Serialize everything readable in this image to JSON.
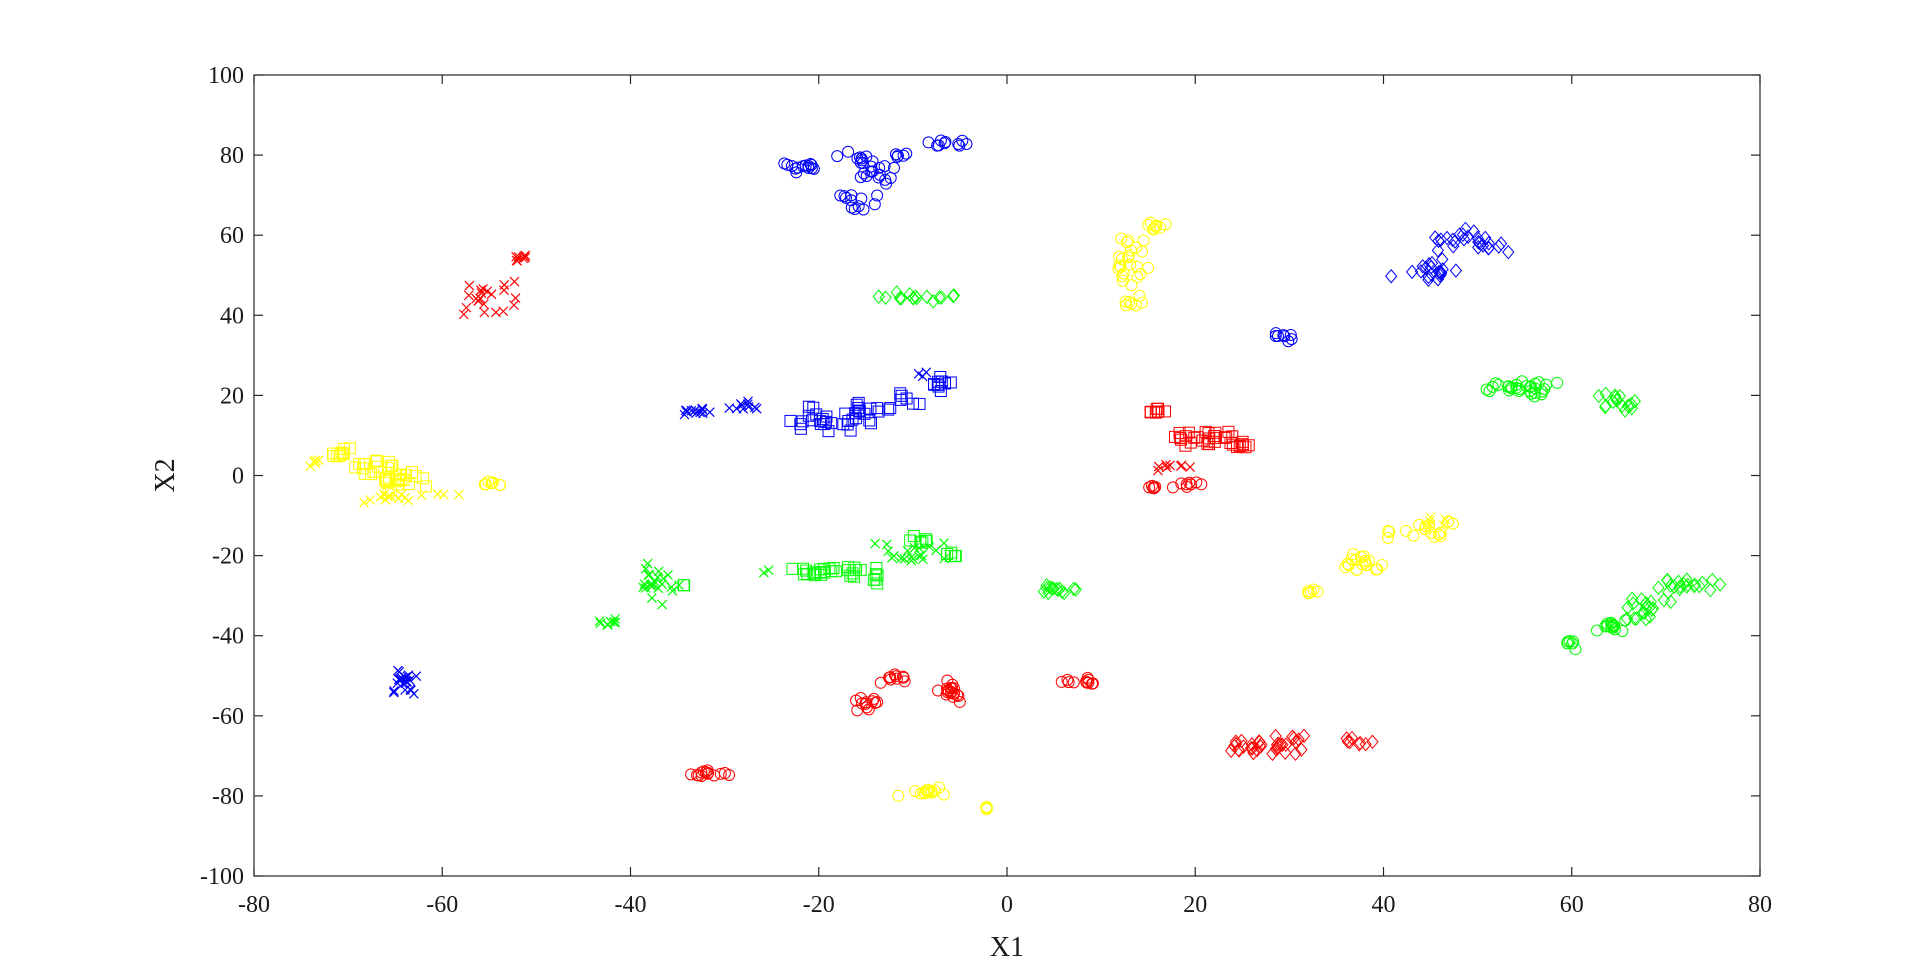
{
  "chart_data": {
    "type": "scatter",
    "title": "",
    "xlabel": "X1",
    "ylabel": "X2",
    "xlim": [
      -80,
      80
    ],
    "ylim": [
      -100,
      100
    ],
    "xticks": [
      -80,
      -60,
      -40,
      -20,
      0,
      20,
      40,
      60,
      80
    ],
    "yticks": [
      -100,
      -80,
      -60,
      -40,
      -20,
      0,
      20,
      40,
      60,
      80,
      100
    ],
    "grid": false,
    "legend": "none",
    "colors": {
      "blue": "#0000ff",
      "red": "#ff0000",
      "green": "#00ff00",
      "yellow": "#ffff00"
    },
    "clusters": [
      {
        "color": "blue",
        "marker": "o",
        "cx": -22,
        "cy": 77,
        "sx": 1.5,
        "sy": 1.0,
        "n": 14
      },
      {
        "color": "blue",
        "marker": "o",
        "cx": -15.5,
        "cy": 79,
        "sx": 1.2,
        "sy": 1.0,
        "n": 10
      },
      {
        "color": "blue",
        "marker": "o",
        "cx": -14,
        "cy": 75,
        "sx": 1.5,
        "sy": 2.0,
        "n": 14
      },
      {
        "color": "blue",
        "marker": "o",
        "cx": -16,
        "cy": 69,
        "sx": 1.2,
        "sy": 1.5,
        "n": 12
      },
      {
        "color": "blue",
        "marker": "o",
        "cx": -11,
        "cy": 79.5,
        "sx": 0.8,
        "sy": 0.5,
        "n": 5
      },
      {
        "color": "blue",
        "marker": "o",
        "cx": -6,
        "cy": 83,
        "sx": 1.5,
        "sy": 0.6,
        "n": 10
      },
      {
        "color": "yellow",
        "marker": "o",
        "cx": 12.5,
        "cy": 53,
        "sx": 1.5,
        "sy": 4.0,
        "n": 24
      },
      {
        "color": "yellow",
        "marker": "o",
        "cx": 16,
        "cy": 62.5,
        "sx": 1.0,
        "sy": 0.8,
        "n": 8
      },
      {
        "color": "yellow",
        "marker": "o",
        "cx": 14,
        "cy": 43,
        "sx": 0.8,
        "sy": 0.6,
        "n": 6
      },
      {
        "color": "blue",
        "marker": "d",
        "cx": 45,
        "cy": 51,
        "sx": 2.0,
        "sy": 1.5,
        "n": 20
      },
      {
        "color": "blue",
        "marker": "d",
        "cx": 48,
        "cy": 59,
        "sx": 2.5,
        "sy": 1.5,
        "n": 20
      },
      {
        "color": "blue",
        "marker": "d",
        "cx": 52,
        "cy": 57.5,
        "sx": 1.0,
        "sy": 1.0,
        "n": 6
      },
      {
        "color": "red",
        "marker": "x",
        "cx": -51,
        "cy": 54,
        "sx": 0.8,
        "sy": 0.6,
        "n": 8
      },
      {
        "color": "red",
        "marker": "x",
        "cx": -54.5,
        "cy": 43.5,
        "sx": 2.5,
        "sy": 2.5,
        "n": 22
      },
      {
        "color": "green",
        "marker": "d",
        "cx": -10,
        "cy": 44.5,
        "sx": 1.8,
        "sy": 0.8,
        "n": 14
      },
      {
        "color": "green",
        "marker": "d",
        "cx": -5.5,
        "cy": 45,
        "sx": 0.5,
        "sy": 0.5,
        "n": 3
      },
      {
        "color": "blue",
        "marker": "o",
        "cx": 29.5,
        "cy": 34.5,
        "sx": 0.8,
        "sy": 0.5,
        "n": 8
      },
      {
        "color": "blue",
        "marker": "x",
        "cx": -33,
        "cy": 16,
        "sx": 1.0,
        "sy": 0.7,
        "n": 12
      },
      {
        "color": "blue",
        "marker": "x",
        "cx": -28,
        "cy": 17.5,
        "sx": 1.3,
        "sy": 0.7,
        "n": 10
      },
      {
        "color": "blue",
        "marker": "s",
        "cx": -20,
        "cy": 13.5,
        "sx": 2.5,
        "sy": 2.0,
        "n": 20
      },
      {
        "color": "blue",
        "marker": "s",
        "cx": -15,
        "cy": 15.5,
        "sx": 1.5,
        "sy": 2.0,
        "n": 18
      },
      {
        "color": "blue",
        "marker": "s",
        "cx": -11,
        "cy": 19.5,
        "sx": 1.0,
        "sy": 1.0,
        "n": 6
      },
      {
        "color": "blue",
        "marker": "s",
        "cx": -7,
        "cy": 22.5,
        "sx": 1.2,
        "sy": 1.2,
        "n": 10
      },
      {
        "color": "blue",
        "marker": "x",
        "cx": -9,
        "cy": 25.5,
        "sx": 0.5,
        "sy": 0.5,
        "n": 3
      },
      {
        "color": "green",
        "marker": "o",
        "cx": 53.5,
        "cy": 22,
        "sx": 2.5,
        "sy": 0.9,
        "n": 25
      },
      {
        "color": "green",
        "marker": "o",
        "cx": 56.5,
        "cy": 20.5,
        "sx": 0.7,
        "sy": 0.6,
        "n": 5
      },
      {
        "color": "green",
        "marker": "d",
        "cx": 64.5,
        "cy": 18,
        "sx": 1.5,
        "sy": 1.5,
        "n": 16
      },
      {
        "color": "red",
        "marker": "s",
        "cx": 16,
        "cy": 16,
        "sx": 1.0,
        "sy": 0.8,
        "n": 8
      },
      {
        "color": "red",
        "marker": "s",
        "cx": 21,
        "cy": 9,
        "sx": 2.0,
        "sy": 1.5,
        "n": 26
      },
      {
        "color": "red",
        "marker": "s",
        "cx": 25,
        "cy": 7.5,
        "sx": 1.0,
        "sy": 0.6,
        "n": 8
      },
      {
        "color": "red",
        "marker": "x",
        "cx": 17.5,
        "cy": 2,
        "sx": 1.5,
        "sy": 0.5,
        "n": 8
      },
      {
        "color": "red",
        "marker": "o",
        "cx": 15.5,
        "cy": -2.5,
        "sx": 0.6,
        "sy": 0.5,
        "n": 6
      },
      {
        "color": "red",
        "marker": "o",
        "cx": 19.5,
        "cy": -2.5,
        "sx": 1.0,
        "sy": 0.5,
        "n": 8
      },
      {
        "color": "yellow",
        "marker": "s",
        "cx": -71,
        "cy": 6,
        "sx": 1.0,
        "sy": 1.0,
        "n": 10
      },
      {
        "color": "yellow",
        "marker": "s",
        "cx": -67,
        "cy": 2,
        "sx": 2.0,
        "sy": 1.5,
        "n": 18
      },
      {
        "color": "yellow",
        "marker": "s",
        "cx": -64.5,
        "cy": -1.5,
        "sx": 1.5,
        "sy": 1.5,
        "n": 18
      },
      {
        "color": "yellow",
        "marker": "x",
        "cx": -66,
        "cy": -5.5,
        "sx": 2.5,
        "sy": 1.0,
        "n": 12
      },
      {
        "color": "yellow",
        "marker": "x",
        "cx": -73.5,
        "cy": 3,
        "sx": 0.5,
        "sy": 0.8,
        "n": 5
      },
      {
        "color": "yellow",
        "marker": "x",
        "cx": -60,
        "cy": -5,
        "sx": 1.0,
        "sy": 0.6,
        "n": 3
      },
      {
        "color": "yellow",
        "marker": "o",
        "cx": -54.5,
        "cy": -2,
        "sx": 0.8,
        "sy": 0.5,
        "n": 8
      },
      {
        "color": "yellow",
        "marker": "o",
        "cx": 38,
        "cy": -21.5,
        "sx": 1.3,
        "sy": 1.5,
        "n": 18
      },
      {
        "color": "yellow",
        "marker": "o",
        "cx": 43.5,
        "cy": -14,
        "sx": 1.5,
        "sy": 1.5,
        "n": 14
      },
      {
        "color": "yellow",
        "marker": "x",
        "cx": 45.5,
        "cy": -11.5,
        "sx": 0.8,
        "sy": 1.0,
        "n": 6
      },
      {
        "color": "yellow",
        "marker": "o",
        "cx": 47,
        "cy": -12,
        "sx": 0.4,
        "sy": 0.5,
        "n": 3
      },
      {
        "color": "yellow",
        "marker": "o",
        "cx": 32.5,
        "cy": -29,
        "sx": 0.6,
        "sy": 0.5,
        "n": 6
      },
      {
        "color": "green",
        "marker": "x",
        "cx": -37,
        "cy": -27,
        "sx": 1.2,
        "sy": 3.5,
        "n": 22
      },
      {
        "color": "green",
        "marker": "x",
        "cx": -42,
        "cy": -36.5,
        "sx": 0.8,
        "sy": 0.8,
        "n": 8
      },
      {
        "color": "green",
        "marker": "s",
        "cx": -34.5,
        "cy": -27.5,
        "sx": 0.3,
        "sy": 0.3,
        "n": 2
      },
      {
        "color": "green",
        "marker": "s",
        "cx": -18,
        "cy": -24,
        "sx": 3.5,
        "sy": 1.0,
        "n": 28
      },
      {
        "color": "green",
        "marker": "s",
        "cx": -14,
        "cy": -26.5,
        "sx": 0.5,
        "sy": 0.5,
        "n": 3
      },
      {
        "color": "green",
        "marker": "x",
        "cx": -25.5,
        "cy": -24,
        "sx": 0.3,
        "sy": 0.3,
        "n": 2
      },
      {
        "color": "green",
        "marker": "x",
        "cx": -10,
        "cy": -19.5,
        "sx": 2.5,
        "sy": 2.0,
        "n": 20
      },
      {
        "color": "green",
        "marker": "s",
        "cx": -9,
        "cy": -16,
        "sx": 1.0,
        "sy": 0.8,
        "n": 6
      },
      {
        "color": "green",
        "marker": "s",
        "cx": -6,
        "cy": -20.5,
        "sx": 0.8,
        "sy": 0.8,
        "n": 6
      },
      {
        "color": "green",
        "marker": "d",
        "cx": 5.5,
        "cy": -28.5,
        "sx": 1.2,
        "sy": 0.8,
        "n": 14
      },
      {
        "color": "green",
        "marker": "d",
        "cx": 68,
        "cy": -33.5,
        "sx": 2.0,
        "sy": 2.0,
        "n": 20
      },
      {
        "color": "green",
        "marker": "d",
        "cx": 72,
        "cy": -27,
        "sx": 1.8,
        "sy": 1.5,
        "n": 20
      },
      {
        "color": "green",
        "marker": "o",
        "cx": 64,
        "cy": -37.5,
        "sx": 1.5,
        "sy": 1.0,
        "n": 14
      },
      {
        "color": "green",
        "marker": "o",
        "cx": 60,
        "cy": -42,
        "sx": 0.5,
        "sy": 1.0,
        "n": 6
      },
      {
        "color": "blue",
        "marker": "x",
        "cx": -64,
        "cy": -51,
        "sx": 0.8,
        "sy": 2.0,
        "n": 22
      },
      {
        "color": "red",
        "marker": "o",
        "cx": -12,
        "cy": -50.5,
        "sx": 1.0,
        "sy": 0.8,
        "n": 10
      },
      {
        "color": "red",
        "marker": "o",
        "cx": -6.5,
        "cy": -54,
        "sx": 1.5,
        "sy": 1.2,
        "n": 18
      },
      {
        "color": "red",
        "marker": "o",
        "cx": -14.5,
        "cy": -57,
        "sx": 1.0,
        "sy": 0.8,
        "n": 12
      },
      {
        "color": "red",
        "marker": "o",
        "cx": 8.5,
        "cy": -51.5,
        "sx": 1.8,
        "sy": 0.5,
        "n": 12
      },
      {
        "color": "red",
        "marker": "o",
        "cx": -32,
        "cy": -74.5,
        "sx": 1.5,
        "sy": 0.8,
        "n": 14
      },
      {
        "color": "yellow",
        "marker": "o",
        "cx": -8,
        "cy": -79,
        "sx": 2.0,
        "sy": 0.8,
        "n": 14
      },
      {
        "color": "yellow",
        "marker": "o",
        "cx": -2,
        "cy": -83,
        "sx": 0.5,
        "sy": 0.3,
        "n": 4
      },
      {
        "color": "red",
        "marker": "d",
        "cx": 24.5,
        "cy": -68,
        "sx": 1.0,
        "sy": 1.2,
        "n": 10
      },
      {
        "color": "red",
        "marker": "d",
        "cx": 29.5,
        "cy": -67,
        "sx": 2.0,
        "sy": 1.5,
        "n": 24
      },
      {
        "color": "red",
        "marker": "d",
        "cx": 37.5,
        "cy": -66.5,
        "sx": 0.8,
        "sy": 0.6,
        "n": 8
      }
    ]
  }
}
